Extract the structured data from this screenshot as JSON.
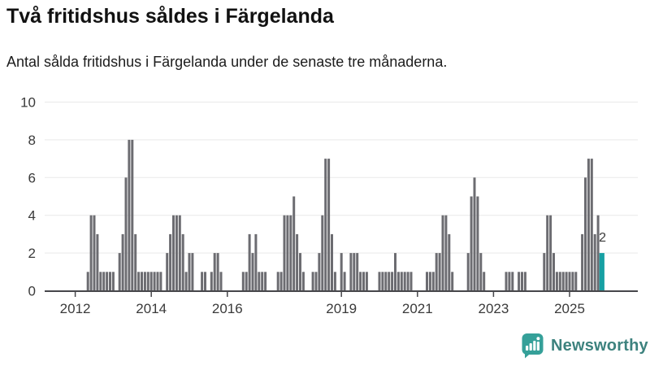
{
  "header": {
    "title": "Två fritidshus såldes i Färgelanda",
    "subtitle": "Antal sålda fritidshus i Färgelanda under de senaste tre månaderna."
  },
  "chart_data": {
    "type": "bar",
    "frequency": "monthly",
    "x_start": "2012-05",
    "x_end": "2025-11",
    "values": [
      1,
      4,
      4,
      3,
      1,
      1,
      1,
      1,
      1,
      0,
      2,
      3,
      6,
      8,
      8,
      3,
      1,
      1,
      1,
      1,
      1,
      1,
      1,
      1,
      0,
      2,
      3,
      4,
      4,
      4,
      3,
      1,
      2,
      2,
      0,
      0,
      1,
      1,
      0,
      1,
      2,
      2,
      1,
      0,
      0,
      0,
      0,
      0,
      0,
      1,
      1,
      3,
      2,
      3,
      1,
      1,
      1,
      0,
      0,
      0,
      1,
      1,
      4,
      4,
      4,
      5,
      3,
      2,
      1,
      0,
      0,
      1,
      1,
      2,
      4,
      7,
      7,
      3,
      1,
      0,
      2,
      1,
      0,
      2,
      2,
      2,
      1,
      1,
      1,
      0,
      0,
      0,
      1,
      1,
      1,
      1,
      1,
      2,
      1,
      1,
      1,
      1,
      1,
      0,
      0,
      0,
      0,
      1,
      1,
      1,
      2,
      2,
      4,
      4,
      3,
      1,
      0,
      0,
      0,
      0,
      2,
      5,
      6,
      5,
      2,
      1,
      0,
      0,
      0,
      0,
      0,
      0,
      1,
      1,
      1,
      0,
      1,
      1,
      1,
      0,
      0,
      0,
      0,
      0,
      2,
      4,
      4,
      2,
      1,
      1,
      1,
      1,
      1,
      1,
      1,
      0,
      3,
      6,
      7,
      7,
      3,
      4,
      2
    ],
    "ylim": [
      0,
      10
    ],
    "yticks": [
      "0",
      "2",
      "4",
      "6",
      "8",
      "10"
    ],
    "xtick_years": [
      "2012",
      "2014",
      "2016",
      "2019",
      "2021",
      "2023",
      "2025"
    ],
    "grid": true,
    "legend": "none",
    "bar_color": "#6c6c71",
    "highlight": {
      "index": 162,
      "label": "2",
      "color": "#17a0a3"
    },
    "axis_color": "#47474b",
    "grid_color": "#e9e9e9",
    "tick_label_color": "#3a3a3a"
  },
  "footer": {
    "brand": "Newsworthy"
  }
}
